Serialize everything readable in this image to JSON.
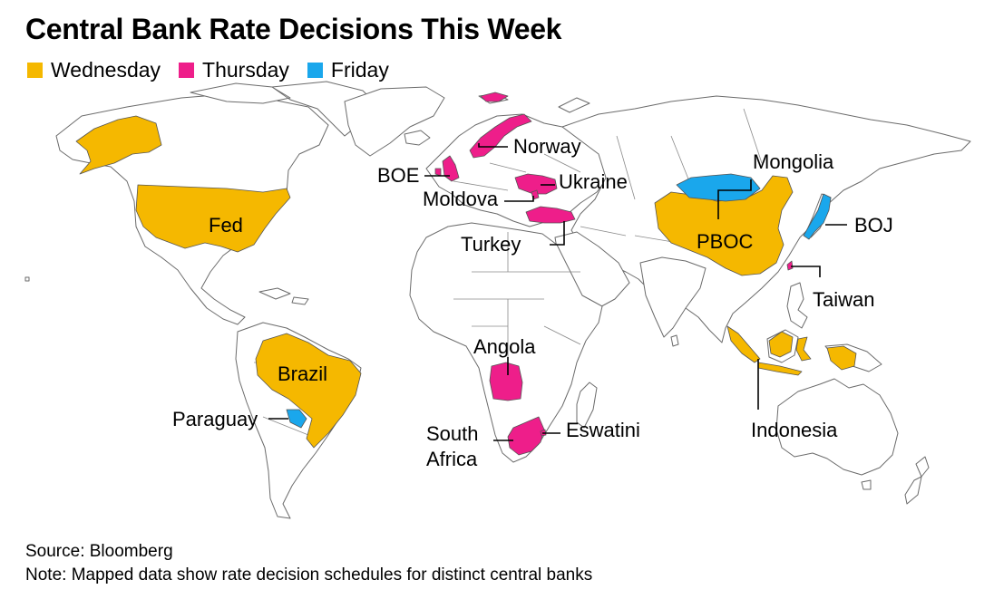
{
  "title": "Central Bank Rate Decisions This Week",
  "legend": [
    {
      "label": "Wednesday",
      "color": "#f5b800"
    },
    {
      "label": "Thursday",
      "color": "#ee1e8a"
    },
    {
      "label": "Friday",
      "color": "#1aa7ec"
    }
  ],
  "labels": {
    "norway": "Norway",
    "boe": "BOE",
    "ukraine": "Ukraine",
    "moldova": "Moldova",
    "turkey": "Turkey",
    "mongolia": "Mongolia",
    "boj": "BOJ",
    "pboc": "PBOC",
    "taiwan": "Taiwan",
    "fed": "Fed",
    "brazil": "Brazil",
    "paraguay": "Paraguay",
    "angola": "Angola",
    "south_africa_1": "South",
    "south_africa_2": "Africa",
    "eswatini": "Eswatini",
    "indonesia": "Indonesia"
  },
  "regions": {
    "wednesday": [
      "United States",
      "Alaska",
      "Brazil",
      "China",
      "Indonesia"
    ],
    "thursday": [
      "Norway",
      "United Kingdom",
      "Ukraine",
      "Moldova",
      "Turkey",
      "Taiwan",
      "Angola",
      "South Africa",
      "Eswatini"
    ],
    "friday": [
      "Mongolia",
      "Japan",
      "Paraguay"
    ]
  },
  "footer": {
    "source": "Source: Bloomberg",
    "note": "Note: Mapped data show rate decision schedules for distinct central banks"
  }
}
